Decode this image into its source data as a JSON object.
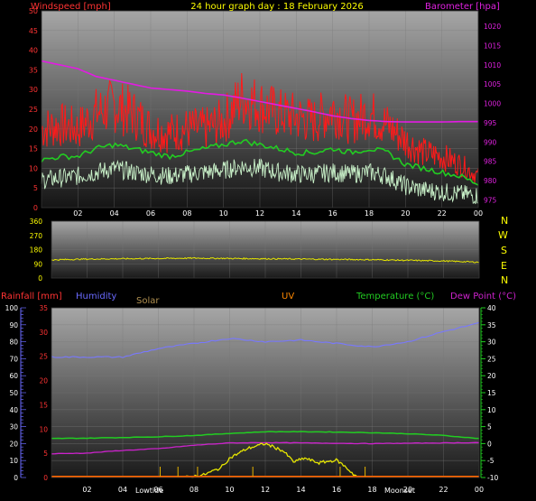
{
  "header": {
    "title": "24 hour graph day : 18 February 2026",
    "left_label": "Windspeed [mph]",
    "right_label": "Barometer [hpa]"
  },
  "colors": {
    "wind_gust": "#ff1a1a",
    "wind_avg": "#22cc22",
    "wind_speed": "#c8f0c8",
    "barometer": "#e21be2",
    "wind_dir": "#e6e600",
    "humidity": "#7878ff",
    "temperature": "#22cc22",
    "dew_point": "#cc22cc",
    "solar": "#e6e600",
    "rainfall": "#ff6600",
    "uv": "#ff8800",
    "axis_green": "#22cc22",
    "axis_blue": "#6a6aff"
  },
  "panels": {
    "direction_letters": [
      "N",
      "W",
      "S",
      "E",
      "N"
    ],
    "lower_labels": {
      "rainfall": "Rainfall [mm]",
      "humidity": "Humidity",
      "solar": "Solar",
      "uv": "UV",
      "temperature": "Temperature (°C)",
      "dew_point": "Dew Point (°C)"
    },
    "annotations": {
      "lowtide": "Lowtide",
      "moonset": "Moonset"
    }
  },
  "chart_data": [
    {
      "type": "line",
      "title": "24 hour graph day : 18 February 2026",
      "x_ticks": [
        "02",
        "04",
        "06",
        "08",
        "10",
        "12",
        "14",
        "16",
        "18",
        "20",
        "22",
        "00"
      ],
      "x_hours": [
        2,
        4,
        6,
        8,
        10,
        12,
        14,
        16,
        18,
        20,
        22,
        24
      ],
      "left_axis": {
        "label": "Windspeed [mph]",
        "ticks": [
          0,
          5,
          10,
          15,
          20,
          25,
          30,
          35,
          40,
          45,
          50
        ],
        "ylim": [
          0,
          50
        ]
      },
      "right_axis": {
        "label": "Barometer [hpa]",
        "ticks": [
          975,
          980,
          985,
          990,
          995,
          1000,
          1005,
          1010,
          1015,
          1020
        ],
        "ylim": [
          973,
          1024
        ]
      },
      "hours": [
        0,
        1,
        2,
        3,
        4,
        5,
        6,
        7,
        8,
        9,
        10,
        11,
        12,
        13,
        14,
        15,
        16,
        17,
        18,
        19,
        20,
        21,
        22,
        23,
        24
      ],
      "series": [
        {
          "name": "Wind Gust",
          "axis": "left",
          "values": [
            20,
            21,
            20,
            24,
            26,
            24,
            20,
            19,
            20,
            20,
            22,
            28,
            26,
            24,
            23,
            22,
            25,
            22,
            24,
            21,
            17,
            14,
            13,
            11,
            8
          ]
        },
        {
          "name": "Average Wind",
          "axis": "left",
          "values": [
            12,
            13,
            13,
            15,
            16,
            15,
            14,
            13,
            14,
            15,
            16,
            17,
            16,
            15,
            14,
            14,
            15,
            14,
            15,
            14,
            11,
            10,
            9,
            8,
            6
          ]
        },
        {
          "name": "Wind Speed",
          "axis": "left",
          "values": [
            7,
            7.5,
            8,
            9,
            10,
            9,
            8.5,
            8,
            8.5,
            9,
            9.5,
            10.5,
            10,
            9,
            8.5,
            8.5,
            9,
            8.5,
            9,
            8,
            5.5,
            4.5,
            4,
            3.5,
            3
          ]
        },
        {
          "name": "Barometer",
          "axis": "right",
          "values": [
            1011,
            1010,
            1009,
            1007,
            1006,
            1005,
            1004,
            1003.6,
            1003.2,
            1002.6,
            1002.2,
            1001.4,
            1000.5,
            999.6,
            998.7,
            997.8,
            996.8,
            996.1,
            995.6,
            995.3,
            995.2,
            995.2,
            995.2,
            995.3,
            995.3
          ]
        }
      ]
    },
    {
      "type": "line",
      "x_hours": [
        2,
        4,
        6,
        8,
        10,
        12,
        14,
        16,
        18,
        20,
        22,
        24
      ],
      "left_axis": {
        "ticks": [
          0,
          90,
          180,
          270,
          360
        ],
        "ylim": [
          0,
          360
        ]
      },
      "right_axis": {
        "ticks": [
          "N",
          "W",
          "S",
          "E",
          "N"
        ]
      },
      "hours": [
        0,
        2,
        4,
        6,
        8,
        10,
        12,
        14,
        16,
        18,
        20,
        22,
        24
      ],
      "series": [
        {
          "name": "Wind Direction",
          "values": [
            115,
            120,
            122,
            124,
            126,
            124,
            122,
            120,
            118,
            116,
            112,
            108,
            100
          ]
        }
      ]
    },
    {
      "type": "line",
      "x_ticks": [
        "02",
        "04",
        "06",
        "08",
        "10",
        "12",
        "14",
        "16",
        "18",
        "20",
        "22",
        "00"
      ],
      "x_hours": [
        2,
        4,
        6,
        8,
        10,
        12,
        14,
        16,
        18,
        20,
        22,
        24
      ],
      "humidity_axis": {
        "label": "Humidity",
        "ticks": [
          0,
          10,
          20,
          30,
          40,
          50,
          60,
          70,
          80,
          90,
          100
        ],
        "ylim": [
          0,
          100
        ]
      },
      "rain_axis": {
        "label": "Rainfall [mm]",
        "ticks": [
          0,
          5,
          10,
          15,
          20,
          25,
          30,
          35
        ],
        "ylim": [
          0,
          35
        ]
      },
      "temp_axis": {
        "label": "Temperature (°C)",
        "ticks": [
          -10,
          -5,
          0,
          5,
          10,
          15,
          20,
          25,
          30,
          35,
          40
        ],
        "ylim": [
          -10,
          40
        ]
      },
      "hours": [
        0,
        2,
        4,
        6,
        8,
        10,
        12,
        14,
        16,
        18,
        20,
        22,
        24
      ],
      "series": [
        {
          "name": "Humidity",
          "axis": "humidity",
          "values": [
            71,
            71,
            71,
            76,
            79,
            82,
            80,
            81,
            79,
            77,
            80,
            86,
            91
          ]
        },
        {
          "name": "Temperature",
          "axis": "temp",
          "values": [
            1.5,
            1.6,
            1.8,
            2.0,
            2.4,
            3.0,
            3.5,
            3.5,
            3.4,
            3.2,
            2.9,
            2.4,
            1.5
          ]
        },
        {
          "name": "Dew Point",
          "axis": "temp",
          "values": [
            -3.0,
            -2.8,
            -2.0,
            -1.5,
            -0.5,
            0.2,
            0.3,
            0.2,
            0.1,
            0.0,
            0.1,
            0.2,
            0.3
          ]
        },
        {
          "name": "Solar",
          "axis": "rain",
          "hours": [
            7.5,
            8.5,
            9.5,
            10.0,
            11.0,
            12.0,
            13.0,
            13.6,
            14.2,
            15.0,
            16.0,
            16.5,
            17.0,
            17.3
          ],
          "values": [
            0,
            0.5,
            2,
            4,
            6,
            7,
            5.5,
            3.2,
            4,
            3,
            3.6,
            2.2,
            0.5,
            0
          ]
        }
      ]
    }
  ]
}
